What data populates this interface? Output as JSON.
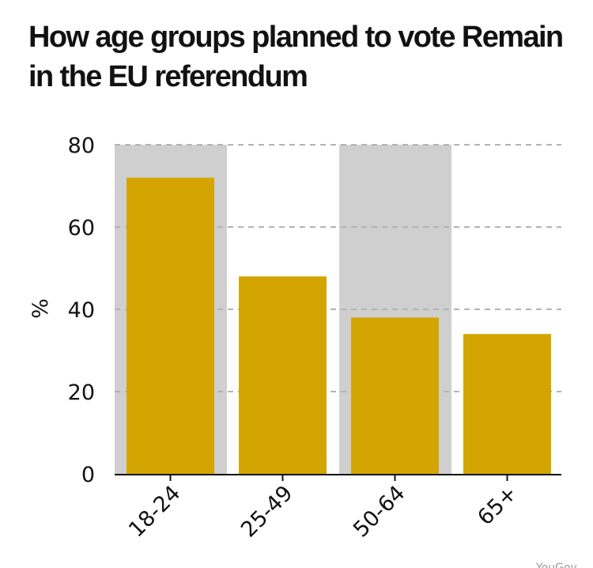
{
  "chart_data": {
    "type": "bar",
    "title": "How age groups planned to vote Remain in the EU referendum",
    "ylabel": "%",
    "xlabel": "",
    "categories": [
      "18-24",
      "25-49",
      "50-64",
      "65+"
    ],
    "values": [
      72,
      48,
      38,
      34
    ],
    "ylim": [
      0,
      80
    ],
    "yticks": [
      0,
      20,
      40,
      60,
      80
    ],
    "shaded_categories": [
      "18-24",
      "50-64"
    ],
    "grid": true,
    "legend": "none",
    "source": "YouGov"
  },
  "colors": {
    "bar": "#d4a500",
    "shade": "#cfcfcf",
    "grid": "#b3b3b3",
    "axis": "#121212",
    "text": "#121212"
  }
}
